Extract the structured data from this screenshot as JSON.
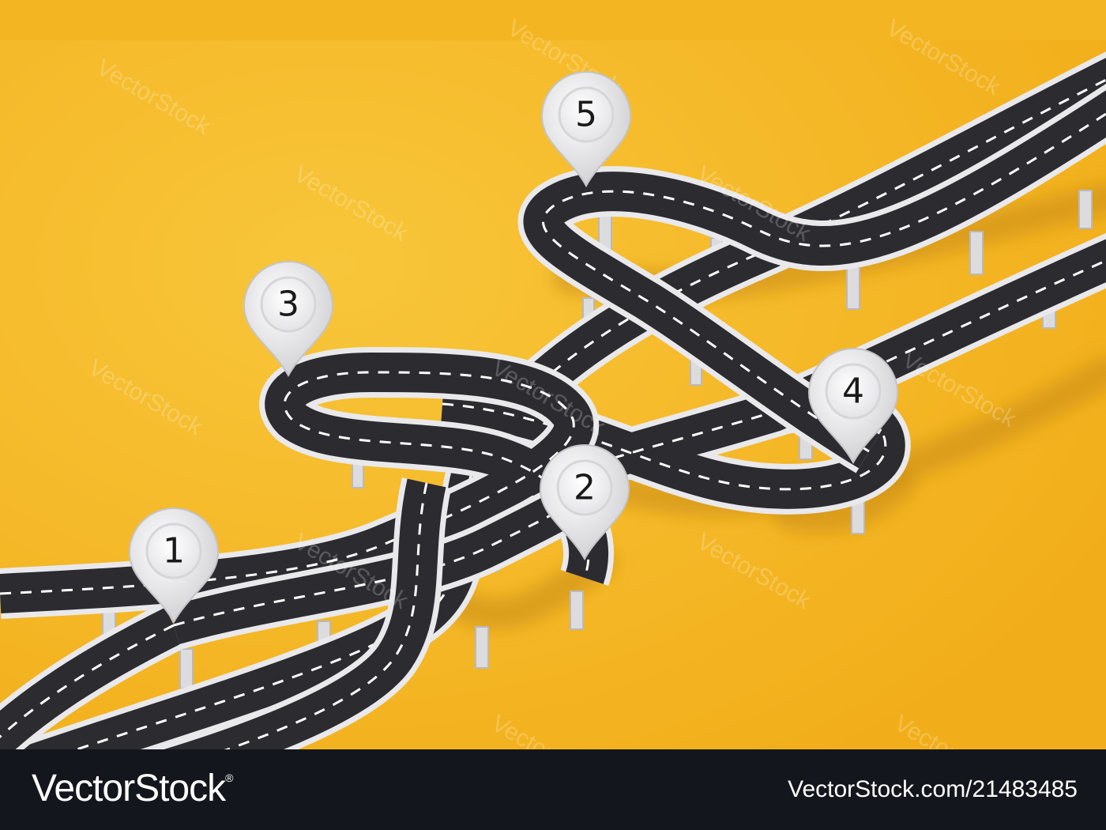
{
  "scene": {
    "background_color": "#f4b522",
    "road_color": "#2b2b30",
    "road_edge_color": "#e9e9ec",
    "marking_color": "#ffffff",
    "pillar_color": "#dcdcdf"
  },
  "pins": [
    {
      "label": "1",
      "icon": "map-pin-icon"
    },
    {
      "label": "2",
      "icon": "map-pin-icon"
    },
    {
      "label": "3",
      "icon": "map-pin-icon"
    },
    {
      "label": "4",
      "icon": "map-pin-icon"
    },
    {
      "label": "5",
      "icon": "map-pin-icon"
    }
  ],
  "watermark": {
    "text": "VectorStock"
  },
  "footer": {
    "logo_text": "VectorStock",
    "logo_mark": "®",
    "image_id": "VectorStock.com/21483485"
  }
}
